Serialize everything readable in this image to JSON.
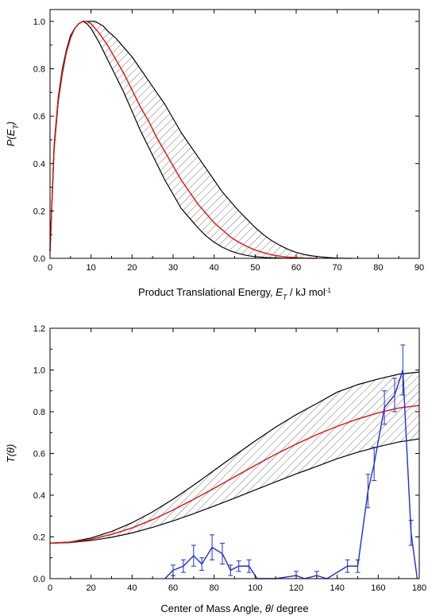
{
  "colors": {
    "envelope": "#000000",
    "hatch": "#555555",
    "best_fit": "#e01010",
    "experimental": "#1f2fd6"
  },
  "chart_data": [
    {
      "type": "line",
      "panel": "top",
      "title": "",
      "xlabel": {
        "prefix": "Product Translational Energy, ",
        "symbol": "E",
        "subscript": "T",
        "suffix": " / kJ mol",
        "superscript": "-1"
      },
      "ylabel": {
        "prefix": "P(",
        "symbol": "E",
        "subscript": "T",
        "suffix": ")"
      },
      "xlim": [
        0,
        90
      ],
      "ylim": [
        0,
        1.05
      ],
      "xticks": [
        "0",
        "10",
        "20",
        "30",
        "40",
        "50",
        "60",
        "70",
        "80",
        "90"
      ],
      "yticks": [
        "0.0",
        "0.2",
        "0.4",
        "0.6",
        "0.8",
        "1.0"
      ],
      "grid": false,
      "legend": "none",
      "series": [
        {
          "role": "upper_bound",
          "x": [
            0,
            1,
            2,
            3,
            4,
            5,
            6,
            7,
            8,
            9,
            10,
            11,
            12,
            13,
            14,
            16,
            18,
            20,
            22,
            24,
            26,
            28,
            30,
            32,
            34,
            36,
            38,
            40,
            42,
            44,
            46,
            48,
            50,
            52,
            54,
            56,
            58,
            60,
            62,
            64,
            66,
            68,
            70,
            72,
            73.5
          ],
          "y": [
            0.03,
            0.46,
            0.66,
            0.78,
            0.87,
            0.93,
            0.97,
            0.99,
            1.0,
            1.0,
            1.0,
            1.0,
            0.99,
            0.98,
            0.96,
            0.93,
            0.89,
            0.85,
            0.8,
            0.75,
            0.7,
            0.65,
            0.59,
            0.53,
            0.48,
            0.43,
            0.38,
            0.33,
            0.28,
            0.24,
            0.2,
            0.165,
            0.13,
            0.1,
            0.075,
            0.055,
            0.038,
            0.025,
            0.016,
            0.01,
            0.006,
            0.003,
            0.001,
            0.0,
            0.0
          ]
        },
        {
          "role": "lower_bound",
          "x": [
            0,
            1,
            2,
            3,
            4,
            5,
            6,
            7,
            8,
            9,
            10,
            11,
            12,
            14,
            16,
            18,
            20,
            22,
            24,
            26,
            28,
            30,
            32,
            34,
            36,
            38,
            40,
            42,
            44,
            46,
            48,
            50,
            52,
            54,
            56,
            58,
            60
          ],
          "y": [
            0.03,
            0.48,
            0.68,
            0.8,
            0.88,
            0.94,
            0.97,
            0.99,
            1.0,
            0.99,
            0.97,
            0.94,
            0.91,
            0.84,
            0.77,
            0.7,
            0.62,
            0.54,
            0.47,
            0.4,
            0.33,
            0.27,
            0.21,
            0.17,
            0.13,
            0.095,
            0.068,
            0.047,
            0.031,
            0.02,
            0.012,
            0.007,
            0.004,
            0.002,
            0.001,
            0.0,
            0.0
          ]
        },
        {
          "role": "best_fit",
          "x": [
            0,
            1,
            2,
            3,
            4,
            5,
            6,
            7,
            8,
            9,
            10,
            11,
            12,
            14,
            16,
            18,
            20,
            22,
            24,
            26,
            28,
            30,
            32,
            34,
            36,
            38,
            40,
            42,
            44,
            46,
            48,
            50,
            52,
            54,
            56,
            58,
            60,
            62,
            64,
            65
          ],
          "y": [
            0.03,
            0.47,
            0.67,
            0.79,
            0.87,
            0.93,
            0.97,
            0.99,
            1.0,
            1.0,
            0.99,
            0.97,
            0.95,
            0.9,
            0.84,
            0.78,
            0.71,
            0.64,
            0.58,
            0.51,
            0.45,
            0.39,
            0.33,
            0.28,
            0.23,
            0.19,
            0.15,
            0.12,
            0.09,
            0.068,
            0.05,
            0.035,
            0.024,
            0.015,
            0.009,
            0.005,
            0.003,
            0.001,
            0.0,
            0.0
          ]
        }
      ]
    },
    {
      "type": "line",
      "panel": "bottom",
      "title": "",
      "xlabel": {
        "prefix": "Center of Mass Angle, ",
        "symbol": "θ",
        "suffix": "/ degree"
      },
      "ylabel": {
        "prefix": "T(",
        "symbol": "θ",
        "suffix": ")"
      },
      "xlim": [
        0,
        180
      ],
      "ylim": [
        0,
        1.2
      ],
      "xticks": [
        "0",
        "20",
        "40",
        "60",
        "80",
        "100",
        "120",
        "140",
        "160",
        "180"
      ],
      "yticks": [
        "0.0",
        "0.2",
        "0.4",
        "0.6",
        "0.8",
        "1.0",
        "1.2"
      ],
      "grid": false,
      "legend": "none",
      "series": [
        {
          "role": "upper_bound",
          "x": [
            0,
            10,
            20,
            30,
            40,
            50,
            60,
            70,
            80,
            90,
            100,
            110,
            120,
            130,
            140,
            150,
            160,
            170,
            180
          ],
          "y": [
            0.17,
            0.176,
            0.195,
            0.226,
            0.268,
            0.32,
            0.381,
            0.448,
            0.519,
            0.59,
            0.66,
            0.726,
            0.786,
            0.839,
            0.894,
            0.93,
            0.957,
            0.98,
            0.99
          ]
        },
        {
          "role": "lower_bound",
          "x": [
            0,
            10,
            20,
            30,
            40,
            50,
            60,
            70,
            80,
            90,
            100,
            110,
            120,
            130,
            140,
            150,
            160,
            170,
            180
          ],
          "y": [
            0.17,
            0.173,
            0.183,
            0.198,
            0.219,
            0.246,
            0.277,
            0.311,
            0.348,
            0.386,
            0.425,
            0.464,
            0.502,
            0.538,
            0.575,
            0.606,
            0.632,
            0.655,
            0.67
          ]
        },
        {
          "role": "best_fit",
          "x": [
            0,
            10,
            20,
            30,
            40,
            50,
            60,
            70,
            80,
            90,
            100,
            110,
            120,
            130,
            140,
            150,
            160,
            170,
            180
          ],
          "y": [
            0.17,
            0.175,
            0.189,
            0.212,
            0.243,
            0.283,
            0.329,
            0.38,
            0.433,
            0.488,
            0.543,
            0.596,
            0.645,
            0.69,
            0.73,
            0.765,
            0.795,
            0.818,
            0.83
          ]
        },
        {
          "role": "experimental",
          "x": [
            56,
            60,
            65,
            70,
            74,
            79,
            84,
            88,
            92,
            97,
            101,
            110,
            120,
            124,
            130,
            135,
            145,
            150,
            155,
            158,
            163,
            168,
            172,
            176,
            179
          ],
          "y": [
            0.0,
            0.04,
            0.06,
            0.11,
            0.07,
            0.15,
            0.12,
            0.04,
            0.06,
            0.06,
            0.0,
            0.0,
            0.015,
            0.0,
            0.015,
            0.0,
            0.06,
            0.06,
            0.42,
            0.55,
            0.82,
            0.88,
            1.0,
            0.22,
            0.0
          ],
          "yerr": [
            0.0,
            0.025,
            0.03,
            0.05,
            0.03,
            0.06,
            0.05,
            0.025,
            0.025,
            0.03,
            0.0,
            0.0,
            0.02,
            0.0,
            0.02,
            0.0,
            0.03,
            0.03,
            0.08,
            0.08,
            0.08,
            0.08,
            0.12,
            0.06,
            0.0
          ]
        }
      ]
    }
  ]
}
